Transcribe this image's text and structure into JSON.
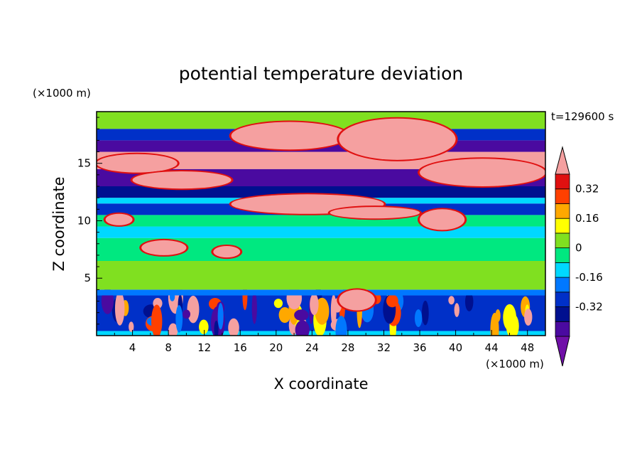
{
  "chart_data": {
    "type": "heatmap",
    "title": "potential temperature deviation",
    "xlabel": "X coordinate",
    "ylabel": "Z coordinate",
    "x_unit": "(×1000 m)",
    "y_unit": "(×1000 m)",
    "time_label": "t=129600 s",
    "xlim": [
      0,
      50
    ],
    "ylim": [
      0,
      19.5
    ],
    "x_ticks": [
      "4",
      "8",
      "12",
      "16",
      "20",
      "24",
      "28",
      "32",
      "36",
      "40",
      "44",
      "48"
    ],
    "y_ticks": [
      "5",
      "10",
      "15"
    ],
    "colorbar": {
      "levels": [
        -0.48,
        -0.4,
        -0.32,
        -0.24,
        -0.16,
        -0.08,
        0,
        0.08,
        0.16,
        0.24,
        0.32,
        0.4
      ],
      "labels": [
        "-0.32",
        "-0.16",
        "0",
        "0.16",
        "0.32"
      ],
      "label_values": [
        -0.32,
        -0.16,
        0,
        0.16,
        0.32
      ],
      "colors": [
        "#7010a8",
        "#4a0aa0",
        "#00108f",
        "#0030c8",
        "#0078ff",
        "#00d8ff",
        "#00e880",
        "#80e020",
        "#ffff00",
        "#ffa800",
        "#ff4000",
        "#e01010",
        "#f5a0a0"
      ],
      "extend": "both"
    },
    "bands": [
      {
        "z": [
          0.0,
          0.4
        ],
        "value": -0.12
      },
      {
        "z": [
          0.4,
          3.5
        ],
        "value": -0.3,
        "turbulent": true
      },
      {
        "z": [
          3.5,
          4.0
        ],
        "value": -0.18
      },
      {
        "z": [
          4.0,
          6.5
        ],
        "value": 0.04
      },
      {
        "z": [
          6.5,
          8.5
        ],
        "value": -0.02
      },
      {
        "z": [
          8.5,
          9.5
        ],
        "value": -0.1
      },
      {
        "z": [
          9.5,
          10.5
        ],
        "value": -0.02
      },
      {
        "z": [
          10.5,
          11.5
        ],
        "value": -0.28
      },
      {
        "z": [
          11.5,
          12.0
        ],
        "value": -0.12
      },
      {
        "z": [
          12.0,
          13.0
        ],
        "value": -0.4
      },
      {
        "z": [
          13.0,
          14.5
        ],
        "value": -0.45
      },
      {
        "z": [
          14.5,
          16.0
        ],
        "value": 0.42
      },
      {
        "z": [
          16.0,
          17.0
        ],
        "value": -0.46
      },
      {
        "z": [
          17.0,
          18.0
        ],
        "value": -0.3
      },
      {
        "z": [
          18.0,
          19.5
        ],
        "value": 0.04
      }
    ],
    "blobs": [
      {
        "x": [
          0,
          9
        ],
        "z": [
          14.2,
          15.8
        ],
        "value": 0.45
      },
      {
        "x": [
          4,
          15
        ],
        "z": [
          12.8,
          14.3
        ],
        "value": 0.45
      },
      {
        "x": [
          15,
          32
        ],
        "z": [
          10.6,
          12.3
        ],
        "value": 0.45
      },
      {
        "x": [
          26,
          36
        ],
        "z": [
          10.2,
          11.2
        ],
        "value": 0.45
      },
      {
        "x": [
          15,
          28
        ],
        "z": [
          16.2,
          18.6
        ],
        "value": 0.45
      },
      {
        "x": [
          27,
          40
        ],
        "z": [
          15.3,
          18.9
        ],
        "value": 0.45
      },
      {
        "x": [
          36,
          50
        ],
        "z": [
          13.0,
          15.4
        ],
        "value": 0.45
      },
      {
        "x": [
          36,
          41
        ],
        "z": [
          9.2,
          11.0
        ],
        "value": 0.45
      },
      {
        "x": [
          5,
          10
        ],
        "z": [
          7.0,
          8.3
        ],
        "value": 0.45
      },
      {
        "x": [
          13,
          16
        ],
        "z": [
          6.8,
          7.8
        ],
        "value": 0.45
      },
      {
        "x": [
          27,
          31
        ],
        "z": [
          2.2,
          4.0
        ],
        "value": 0.45
      },
      {
        "x": [
          1,
          4
        ],
        "z": [
          9.6,
          10.6
        ],
        "value": 0.45
      }
    ]
  }
}
